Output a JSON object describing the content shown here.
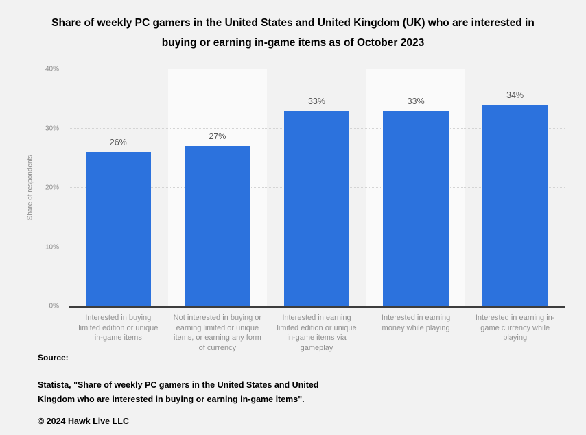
{
  "page": {
    "background": "#f2f2f2"
  },
  "chart_data": {
    "type": "bar",
    "title": "Share of weekly PC gamers in the United States and United Kingdom (UK) who are interested in buying or earning in-game items as of October 2023",
    "categories": [
      "Interested in buying limited edition or unique in-game items",
      "Not interested in buying or earning limited or unique items, or earning any form of currency",
      "Interested in earning limited edition or unique in-game items via gameplay",
      "Interested in earning money while playing",
      "Interested in earning in-game currency while playing"
    ],
    "values": [
      26,
      27,
      33,
      33,
      34
    ],
    "value_labels": [
      "26%",
      "27%",
      "33%",
      "33%",
      "34%"
    ],
    "xlabel": "",
    "ylabel": "Share of respondents",
    "ylim": [
      0,
      40
    ],
    "yticks": [
      {
        "value": 0,
        "label": "0%"
      },
      {
        "value": 10,
        "label": "10%"
      },
      {
        "value": 20,
        "label": "20%"
      },
      {
        "value": 30,
        "label": "30%"
      },
      {
        "value": 40,
        "label": "40%"
      }
    ],
    "grid": "horizontal-dotted",
    "legend": "none",
    "bar_color": "#2c72dd",
    "stripe_colors": [
      "#f2f2f2",
      "#fafafa"
    ]
  },
  "footer": {
    "source_label": "Source:",
    "citation": "Statista, \"Share of weekly PC gamers in the United States and United Kingdom who are interested in buying or earning in-game items\".",
    "copyright": "© 2024 Hawk Live LLC"
  }
}
